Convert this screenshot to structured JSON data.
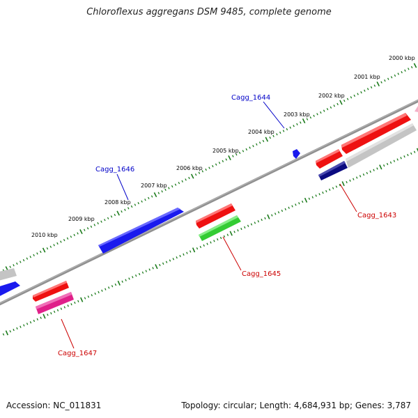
{
  "title": "Chloroflexus aggregans DSM 9485, complete genome",
  "accession": "Accession: NC_011831",
  "topology": "Topology: circular; Length: 4,684,931 bp; Genes: 3,787",
  "scale_labels": [
    "2000 kbp",
    "2001 kbp",
    "2002 kbp",
    "2003 kbp",
    "2004 kbp",
    "2005 kbp",
    "2006 kbp",
    "2007 kbp",
    "2008 kbp",
    "2009 kbp",
    "2010 kbp"
  ],
  "gene_labels": {
    "top": [
      "Cagg_1644",
      "Cagg_1646"
    ],
    "bottom": [
      "Cagg_1643",
      "Cagg_1645",
      "Cagg_1647"
    ]
  },
  "colors": {
    "backbone": "#808080",
    "tick": "#1a7a1a",
    "label_top": "#0000c8",
    "label_bottom": "#cc0000",
    "red": "#ee1111",
    "blue": "#1a1aee",
    "navy": "#0a0a80",
    "green": "#33cc33",
    "magenta": "#e0208a",
    "gray": "#c4c4c4",
    "pink": "#f4b0c8"
  }
}
